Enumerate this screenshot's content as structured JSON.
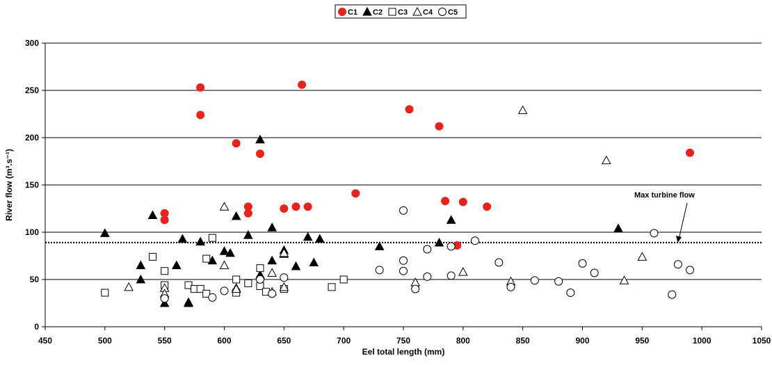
{
  "chart_data": {
    "type": "scatter",
    "xlabel": "Eel total length (mm)",
    "ylabel": "River flow  (m³.s⁻¹)",
    "xlim": [
      450,
      1050
    ],
    "ylim": [
      0,
      300
    ],
    "xticks": [
      450,
      500,
      550,
      600,
      650,
      700,
      750,
      800,
      850,
      900,
      950,
      1000,
      1050
    ],
    "yticks": [
      0,
      50,
      100,
      150,
      200,
      250,
      300
    ],
    "grid": "horizontal",
    "legend_position": "top-center",
    "reference_line": {
      "y": 89,
      "label": "Max turbine flow",
      "style": "dotted"
    },
    "series": [
      {
        "name": "C1",
        "marker": "filled-circle",
        "color": "#e8231e",
        "points": [
          [
            550,
            120
          ],
          [
            550,
            113
          ],
          [
            580,
            253
          ],
          [
            580,
            224
          ],
          [
            610,
            194
          ],
          [
            620,
            127
          ],
          [
            620,
            120
          ],
          [
            630,
            183
          ],
          [
            650,
            125
          ],
          [
            660,
            127
          ],
          [
            665,
            256
          ],
          [
            670,
            127
          ],
          [
            710,
            141
          ],
          [
            755,
            230
          ],
          [
            780,
            212
          ],
          [
            785,
            133
          ],
          [
            795,
            86
          ],
          [
            800,
            132
          ],
          [
            820,
            127
          ],
          [
            990,
            184
          ]
        ]
      },
      {
        "name": "C2",
        "marker": "filled-triangle",
        "color": "#000000",
        "points": [
          [
            500,
            99
          ],
          [
            530,
            65
          ],
          [
            530,
            50
          ],
          [
            540,
            118
          ],
          [
            550,
            25
          ],
          [
            560,
            65
          ],
          [
            565,
            93
          ],
          [
            570,
            26
          ],
          [
            570,
            25
          ],
          [
            580,
            90
          ],
          [
            590,
            70
          ],
          [
            600,
            80
          ],
          [
            605,
            78
          ],
          [
            610,
            117
          ],
          [
            610,
            41
          ],
          [
            620,
            97
          ],
          [
            630,
            198
          ],
          [
            630,
            55
          ],
          [
            640,
            105
          ],
          [
            640,
            70
          ],
          [
            650,
            81
          ],
          [
            650,
            77
          ],
          [
            660,
            64
          ],
          [
            670,
            95
          ],
          [
            675,
            68
          ],
          [
            680,
            93
          ],
          [
            730,
            85
          ],
          [
            780,
            89
          ],
          [
            790,
            113
          ],
          [
            930,
            104
          ]
        ]
      },
      {
        "name": "C3",
        "marker": "open-square",
        "color": "#000000",
        "points": [
          [
            500,
            36
          ],
          [
            540,
            74
          ],
          [
            550,
            59
          ],
          [
            550,
            44
          ],
          [
            570,
            44
          ],
          [
            575,
            40
          ],
          [
            580,
            40
          ],
          [
            585,
            72
          ],
          [
            585,
            35
          ],
          [
            590,
            94
          ],
          [
            610,
            50
          ],
          [
            610,
            36
          ],
          [
            620,
            46
          ],
          [
            630,
            62
          ],
          [
            630,
            43
          ],
          [
            635,
            37
          ],
          [
            650,
            40
          ],
          [
            690,
            42
          ],
          [
            700,
            50
          ]
        ]
      },
      {
        "name": "C4",
        "marker": "open-triangle",
        "color": "#000000",
        "points": [
          [
            520,
            42
          ],
          [
            550,
            41
          ],
          [
            550,
            35
          ],
          [
            600,
            127
          ],
          [
            600,
            65
          ],
          [
            610,
            40
          ],
          [
            640,
            57
          ],
          [
            640,
            37
          ],
          [
            650,
            78
          ],
          [
            650,
            42
          ],
          [
            760,
            47
          ],
          [
            800,
            58
          ],
          [
            840,
            48
          ],
          [
            850,
            229
          ],
          [
            920,
            176
          ],
          [
            935,
            49
          ],
          [
            950,
            74
          ]
        ]
      },
      {
        "name": "C5",
        "marker": "open-circle",
        "color": "#000000",
        "points": [
          [
            550,
            30
          ],
          [
            590,
            31
          ],
          [
            600,
            38
          ],
          [
            630,
            50
          ],
          [
            640,
            35
          ],
          [
            650,
            52
          ],
          [
            730,
            60
          ],
          [
            750,
            123
          ],
          [
            750,
            70
          ],
          [
            750,
            59
          ],
          [
            760,
            40
          ],
          [
            770,
            82
          ],
          [
            770,
            53
          ],
          [
            790,
            85
          ],
          [
            790,
            54
          ],
          [
            810,
            91
          ],
          [
            830,
            68
          ],
          [
            840,
            42
          ],
          [
            860,
            49
          ],
          [
            880,
            48
          ],
          [
            890,
            36
          ],
          [
            900,
            67
          ],
          [
            910,
            57
          ],
          [
            960,
            99
          ],
          [
            975,
            34
          ],
          [
            980,
            66
          ],
          [
            990,
            60
          ]
        ]
      }
    ]
  },
  "colors": {
    "c1_fill": "#e8231e",
    "marker_stroke": "#000000",
    "grid": "#000000"
  }
}
